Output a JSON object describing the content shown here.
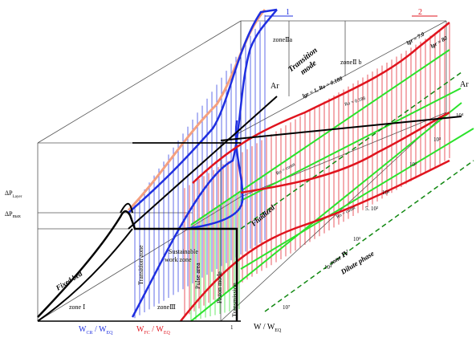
{
  "colors": {
    "blue": "#1f2fe0",
    "red": "#e0141e",
    "green": "#2be22b",
    "salmon": "#f4a080",
    "black": "#000000",
    "frame": "#666666"
  },
  "axes": {
    "y_label_top": "ΔP",
    "y_label_sub": "Layer",
    "y_max_label": "ΔP",
    "y_max_sub": "max",
    "x_label": "W / W",
    "x_label_sub": "EQ",
    "x_one": "1",
    "ar_left": "Ar",
    "ar_right": "Ar"
  },
  "curve_markers": {
    "one": "1",
    "two": "2"
  },
  "x_ratios": {
    "cr_w": "W",
    "cr_sub": "CR",
    "cr_sep": " / W",
    "cr_sub2": "EQ",
    "fc_w": "W",
    "fc_sub": "FC",
    "fc_sep": " / W",
    "fc_sub2": "EQ"
  },
  "zones": {
    "zone_iia": "zoneⅡa",
    "zone_iib": "zoneⅡ b",
    "zone_i": "zone  Ⅰ",
    "zone_iii": "zoneⅢ",
    "zone_iv": "zone Ⅳ",
    "transition_mode_1": "Transition",
    "transition_mode_2": "mode",
    "fixed_bed": "Fixed bed",
    "transition_zone": "Transition zone",
    "sustainable_1": "Sustainable",
    "sustainable_2": "work  zone",
    "pulse_area": "Pulse area",
    "piston_mode": "Piston mode",
    "transmission": "Transmission",
    "fluidized": "Fluidized",
    "dilute_phase": "Dilute phase"
  },
  "relations": {
    "lgr_re_ro": "lgr = 1, Ro = 0.188",
    "ro_188": "Ro = 0.188",
    "lgr_70": "lgr = 7.0",
    "lgr_80": "lgr = 80",
    "ro_const_1": "Ro = const",
    "ro_const_2": "Ro = const"
  },
  "ar_ticks": [
    "10⁴",
    "10³",
    "10²",
    "10³",
    "5. 10²",
    "10³",
    "10⁴",
    "10⁷"
  ]
}
